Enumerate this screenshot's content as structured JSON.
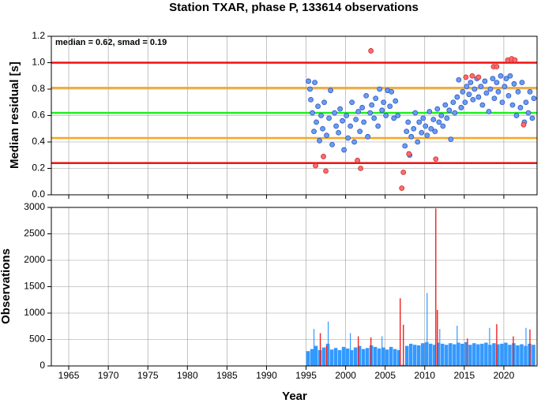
{
  "chart_data": [
    {
      "type": "scatter",
      "title": "Station TXAR, phase P, 133614 observations",
      "ylabel": "Median residual [s]",
      "annotation": "median = 0.62, smad = 0.19",
      "xlim": [
        1962.8,
        2024.2
      ],
      "xticks": [
        1965,
        1970,
        1975,
        1980,
        1985,
        1990,
        1995,
        2000,
        2005,
        2010,
        2015,
        2020
      ],
      "ylim": [
        0,
        1.2
      ],
      "yticks": [
        {
          "value": 0,
          "label": "0.0"
        },
        {
          "value": 0.2,
          "label": "0.2"
        },
        {
          "value": 0.4,
          "label": "0.4"
        },
        {
          "value": 0.6,
          "label": "0.6"
        },
        {
          "value": 0.8,
          "label": "0.8"
        },
        {
          "value": 1,
          "label": "1.0"
        },
        {
          "value": 1.2,
          "label": "1.2"
        }
      ],
      "grid": true,
      "reference_lines": [
        {
          "value": 1.0,
          "color": "#ee1111"
        },
        {
          "value": 0.81,
          "color": "#f5a623"
        },
        {
          "value": 0.62,
          "color": "#22ee22"
        },
        {
          "value": 0.43,
          "color": "#f5a623"
        },
        {
          "value": 0.24,
          "color": "#ee1111"
        }
      ],
      "series": [
        {
          "color": "#6b9cf0",
          "edge": "#2a55c4",
          "x": [
            1995.3,
            1995.5,
            1995.6,
            1995.8,
            1996.0,
            1996.1,
            1996.3,
            1996.5,
            1996.7,
            1996.9,
            1997.1,
            1997.3,
            1997.6,
            1997.9,
            1998.1,
            1998.3,
            1998.6,
            1998.8,
            1999.1,
            1999.3,
            1999.6,
            1999.8,
            2000.1,
            2000.3,
            2000.6,
            2000.8,
            2001.1,
            2001.3,
            2001.6,
            2001.8,
            2002.1,
            2002.3,
            2002.6,
            2002.8,
            2003.1,
            2003.3,
            2003.6,
            2003.8,
            2004.1,
            2004.3,
            2004.6,
            2004.8,
            2005.1,
            2005.3,
            2005.6,
            2005.8,
            2006.1,
            2006.3,
            2006.6,
            2007.5,
            2007.7,
            2007.9,
            2008.1,
            2008.3,
            2008.6,
            2008.8,
            2009.1,
            2009.3,
            2009.6,
            2009.8,
            2010.1,
            2010.3,
            2010.6,
            2010.8,
            2011.1,
            2011.3,
            2011.6,
            2011.8,
            2012.1,
            2012.3,
            2012.6,
            2012.8,
            2013.1,
            2013.3,
            2013.6,
            2013.8,
            2014.1,
            2014.3,
            2014.6,
            2014.8,
            2015.1,
            2015.3,
            2015.6,
            2015.8,
            2016.1,
            2016.3,
            2016.6,
            2016.8,
            2017.1,
            2017.3,
            2017.6,
            2017.8,
            2018.1,
            2018.3,
            2018.6,
            2018.8,
            2019.1,
            2019.3,
            2019.6,
            2019.8,
            2020.1,
            2020.3,
            2020.6,
            2020.8,
            2021.1,
            2021.3,
            2021.6,
            2021.8,
            2022.1,
            2022.3,
            2022.6,
            2022.8,
            2023.1,
            2023.3,
            2023.6,
            2023.8
          ],
          "values": [
            0.86,
            0.8,
            0.72,
            0.62,
            0.48,
            0.85,
            0.55,
            0.67,
            0.41,
            0.6,
            0.5,
            0.7,
            0.45,
            0.58,
            0.79,
            0.38,
            0.62,
            0.52,
            0.47,
            0.65,
            0.56,
            0.34,
            0.6,
            0.43,
            0.52,
            0.7,
            0.4,
            0.57,
            0.63,
            0.48,
            0.66,
            0.55,
            0.75,
            0.44,
            0.62,
            0.68,
            0.58,
            0.73,
            0.52,
            0.8,
            0.64,
            0.7,
            0.6,
            0.79,
            0.67,
            0.78,
            0.58,
            0.71,
            0.6,
            0.37,
            0.48,
            0.55,
            0.3,
            0.44,
            0.5,
            0.62,
            0.4,
            0.55,
            0.47,
            0.58,
            0.52,
            0.45,
            0.63,
            0.5,
            0.57,
            0.48,
            0.65,
            0.55,
            0.6,
            0.52,
            0.68,
            0.58,
            0.64,
            0.42,
            0.7,
            0.62,
            0.74,
            0.87,
            0.66,
            0.78,
            0.7,
            0.82,
            0.76,
            0.85,
            0.72,
            0.8,
            0.88,
            0.74,
            0.82,
            0.68,
            0.86,
            0.77,
            0.63,
            0.8,
            0.88,
            0.73,
            0.85,
            0.78,
            0.9,
            0.7,
            0.82,
            0.88,
            0.75,
            0.9,
            0.68,
            0.84,
            0.6,
            0.78,
            0.66,
            0.85,
            0.55,
            0.7,
            0.62,
            0.78,
            0.58,
            0.73
          ]
        },
        {
          "color": "#ff6b6b",
          "edge": "#c43030",
          "x": [
            1996.2,
            1997.5,
            1997.2,
            2001.5,
            2001.9,
            2003.2,
            2007.1,
            2007.3,
            2008.0,
            2011.4,
            2015.2,
            2016.0,
            2016.8,
            2018.7,
            2019.1,
            2020.5,
            2021.0,
            2021.4,
            2022.5
          ],
          "values": [
            0.22,
            0.18,
            0.29,
            0.26,
            0.2,
            1.09,
            0.05,
            0.17,
            0.31,
            0.27,
            0.89,
            0.9,
            0.89,
            0.97,
            0.97,
            1.02,
            1.03,
            1.02,
            0.53
          ]
        }
      ]
    },
    {
      "type": "bar",
      "ylabel": "Observations",
      "xlabel": "Year",
      "xlim": [
        1962.8,
        2024.2
      ],
      "xticks": [
        1965,
        1970,
        1975,
        1980,
        1985,
        1990,
        1995,
        2000,
        2005,
        2010,
        2015,
        2020
      ],
      "ylim": [
        0,
        3000
      ],
      "yticks": [
        0,
        500,
        1000,
        1500,
        2000,
        2500,
        3000
      ],
      "grid": true,
      "series": [
        {
          "color": "#3399ff",
          "width": 0.45,
          "x": [
            1995.25,
            1995.75,
            1996.25,
            1996.75,
            1997.25,
            1997.75,
            1998.25,
            1998.75,
            1999.25,
            1999.75,
            2000.25,
            2000.75,
            2001.25,
            2001.75,
            2002.25,
            2002.75,
            2003.25,
            2003.75,
            2004.25,
            2004.75,
            2005.25,
            2005.75,
            2006.25,
            2006.75,
            2007.25,
            2007.75,
            2008.25,
            2008.75,
            2009.25,
            2009.75,
            2010.25,
            2010.75,
            2011.25,
            2011.75,
            2012.25,
            2012.75,
            2013.25,
            2013.75,
            2014.25,
            2014.75,
            2015.25,
            2015.75,
            2016.25,
            2016.75,
            2017.25,
            2017.75,
            2018.25,
            2018.75,
            2019.25,
            2019.75,
            2020.25,
            2020.75,
            2021.25,
            2021.75,
            2022.25,
            2022.75,
            2023.25,
            2023.75
          ],
          "values": [
            280,
            320,
            380,
            300,
            350,
            420,
            310,
            340,
            300,
            360,
            330,
            300,
            350,
            380,
            320,
            340,
            390,
            360,
            330,
            350,
            310,
            360,
            320,
            300,
            20,
            380,
            420,
            400,
            390,
            430,
            450,
            420,
            400,
            440,
            420,
            400,
            430,
            410,
            440,
            420,
            450,
            400,
            430,
            410,
            420,
            440,
            400,
            430,
            410,
            420,
            440,
            400,
            430,
            390,
            410,
            380,
            420,
            400
          ]
        },
        {
          "color": "#3399ff",
          "width": 0.12,
          "x": [
            1996.0,
            1997.8,
            2000.6,
            2004.6,
            2010.3,
            2011.9,
            2014.1,
            2018.2,
            2022.8
          ],
          "values": [
            700,
            840,
            620,
            560,
            1380,
            700,
            760,
            720,
            720
          ]
        },
        {
          "color": "#ee2222",
          "width": 0.14,
          "x": [
            1996.8,
            1997.6,
            2001.6,
            2003.2,
            2006.9,
            2007.3,
            2011.4,
            2011.6,
            2015.4,
            2019.1,
            2021.2,
            2023.3
          ],
          "values": [
            620,
            380,
            560,
            540,
            1280,
            780,
            2980,
            1060,
            520,
            790,
            560,
            690
          ]
        }
      ]
    }
  ]
}
